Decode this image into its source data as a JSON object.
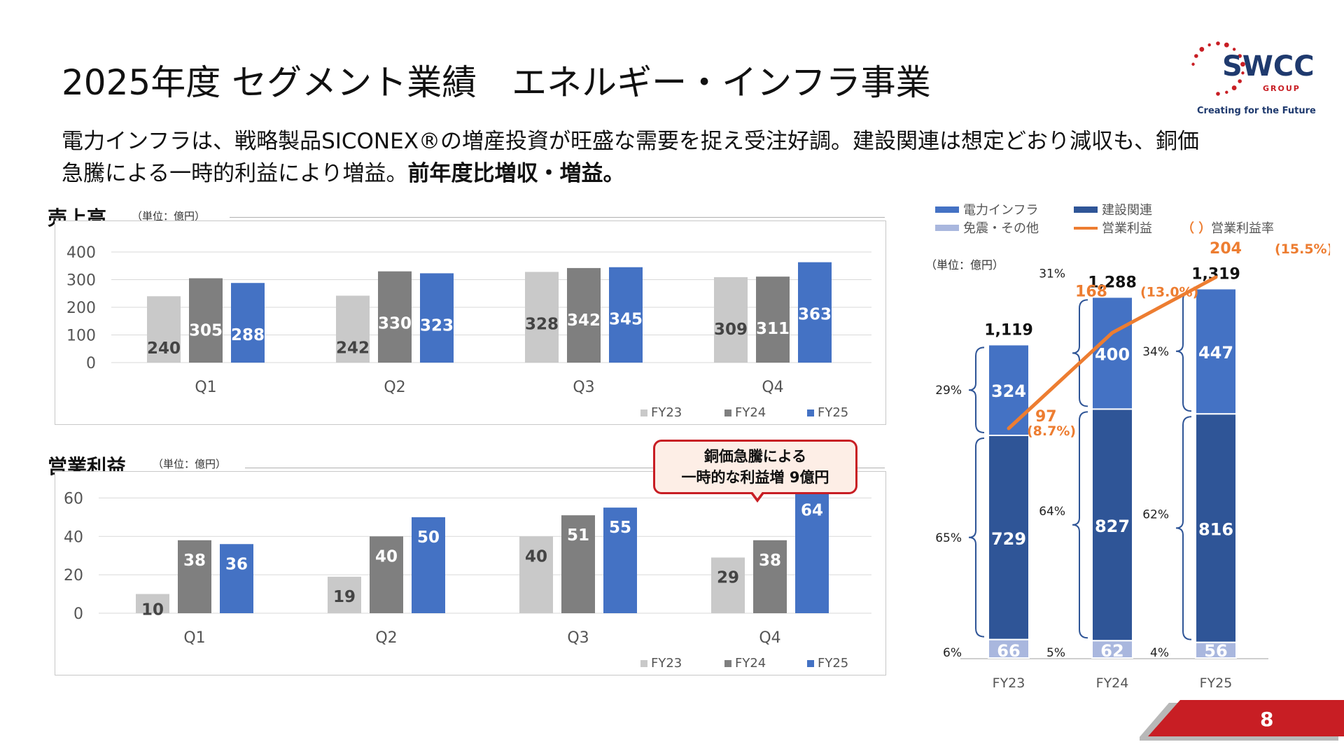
{
  "header": {
    "title": "2025年度 セグメント業績　エネルギー・インフラ事業",
    "lead_line1": "電力インフラは、戦略製品SICONEX®の増産投資が旺盛な需要を捉え受注好調。建設関連は想定どおり減収も、銅価",
    "lead_line2_plain": "急騰による一時的利益により増益。",
    "lead_line2_bold": "前年度比増収・増益。"
  },
  "logo": {
    "text": "SWCC",
    "group": "GROUP",
    "tagline": "Creating for the Future",
    "color": "#c81e24",
    "text_color": "#1f3a6e"
  },
  "sales_section": {
    "title": "売上高",
    "unit": "（単位：億円）"
  },
  "op_section": {
    "title": "営業利益",
    "unit": "（単位：億円）"
  },
  "callout": {
    "line1": "銅価急騰による",
    "line2": "一時的な利益増 9億円"
  },
  "colors": {
    "fy23": "#c9c9c9",
    "fy24": "#7f7f7f",
    "fy25": "#4472c4",
    "infra": "#4472c4",
    "construction": "#2f5597",
    "other": "#a9b7de",
    "line": "#ed7d31",
    "accent": "#c81e24"
  },
  "page_number": "8",
  "chart_data": [
    {
      "type": "bar",
      "title": "売上高",
      "categories": [
        "Q1",
        "Q2",
        "Q3",
        "Q4"
      ],
      "series": [
        {
          "name": "FY23",
          "values": [
            240,
            242,
            328,
            309
          ]
        },
        {
          "name": "FY24",
          "values": [
            305,
            330,
            342,
            311
          ]
        },
        {
          "name": "FY25",
          "values": [
            288,
            323,
            345,
            363
          ]
        }
      ],
      "ylim": [
        0,
        400
      ],
      "yticks": [
        "0",
        "100",
        "200",
        "300",
        "400"
      ],
      "legend": "bottom-right",
      "grid": true
    },
    {
      "type": "bar",
      "title": "営業利益",
      "categories": [
        "Q1",
        "Q2",
        "Q3",
        "Q4"
      ],
      "series": [
        {
          "name": "FY23",
          "values": [
            10,
            19,
            40,
            29
          ]
        },
        {
          "name": "FY24",
          "values": [
            38,
            40,
            51,
            38
          ]
        },
        {
          "name": "FY25",
          "values": [
            36,
            50,
            55,
            64
          ]
        }
      ],
      "ylim": [
        0,
        70
      ],
      "yticks": [
        "0",
        "20",
        "40",
        "60"
      ],
      "legend": "bottom-right",
      "grid": true
    },
    {
      "type": "bar",
      "stacked": true,
      "unit": "（単位：億円）",
      "categories": [
        "FY23",
        "FY24",
        "FY25"
      ],
      "series": [
        {
          "name": "免震・その他",
          "values": [
            66,
            62,
            56
          ],
          "shares": [
            "6%",
            "5%",
            "4%"
          ]
        },
        {
          "name": "建設関連",
          "values": [
            729,
            827,
            816
          ],
          "shares": [
            "65%",
            "64%",
            "62%"
          ]
        },
        {
          "name": "電力インフラ",
          "values": [
            324,
            400,
            447
          ],
          "shares": [
            "29%",
            "31%",
            "34%"
          ]
        }
      ],
      "totals": [
        "1,119",
        "1,288",
        "1,319"
      ],
      "line": {
        "name": "営業利益",
        "values": [
          97,
          168,
          204
        ],
        "margin_name": "（ ）営業利益率",
        "margins": [
          "(8.7%)",
          "(13.0%)",
          "(15.5%)"
        ]
      },
      "legend_items": [
        "電力インフラ",
        "建設関連",
        "免震・その他",
        "営業利益",
        "（ ）",
        "営業利益率"
      ],
      "legend": "top"
    }
  ]
}
